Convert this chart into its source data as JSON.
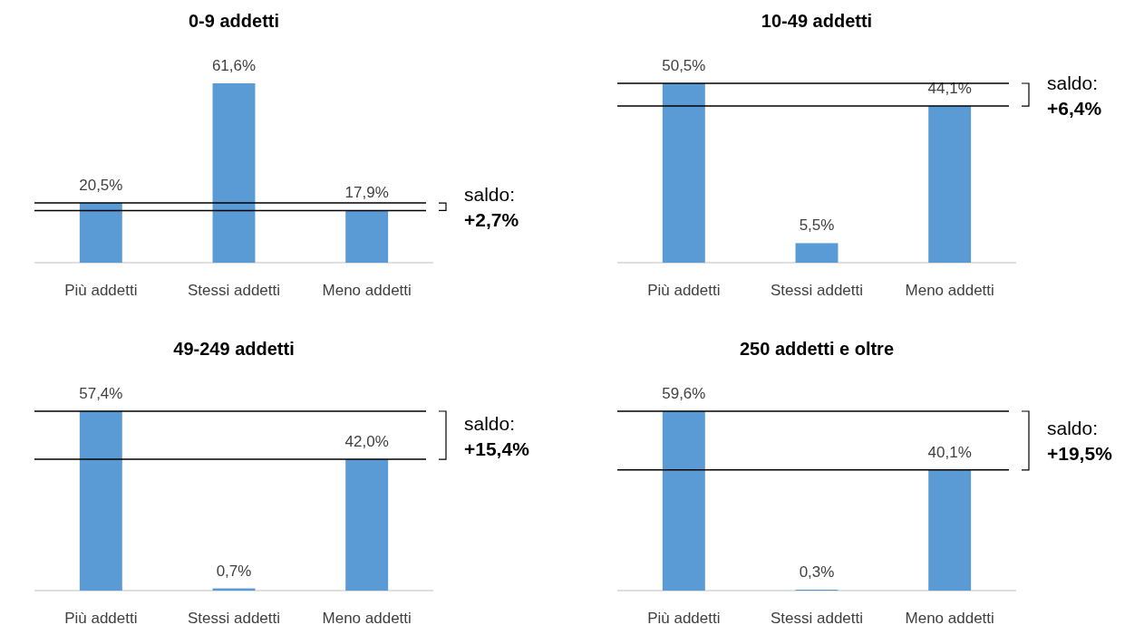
{
  "chart_data": [
    {
      "type": "bar",
      "title": "0-9 addetti",
      "categories": [
        "Più addetti",
        "Stessi addetti",
        "Meno addetti"
      ],
      "values": [
        20.5,
        61.6,
        17.9
      ],
      "value_labels": [
        "20,5%",
        "61,6%",
        "17,9%"
      ],
      "color": "#5b9bd5",
      "ref_lines": [
        {
          "axis": "y",
          "value": 20.5,
          "label": null
        },
        {
          "axis": "y",
          "value": 17.9,
          "label": null
        }
      ],
      "annotations": [
        "saldo:\n+2,7%"
      ]
    },
    {
      "type": "bar",
      "title": "10-49 addetti",
      "categories": [
        "Più addetti",
        "Stessi addetti",
        "Meno addetti"
      ],
      "values": [
        50.5,
        5.5,
        44.1
      ],
      "value_labels": [
        "50,5%",
        "5,5%",
        "44,1%"
      ],
      "color": "#5b9bd5",
      "ref_lines": [
        {
          "axis": "y",
          "value": 50.5,
          "label": null
        },
        {
          "axis": "y",
          "value": 44.1,
          "label": null
        }
      ],
      "annotations": [
        "saldo:\n+6,4%"
      ]
    },
    {
      "type": "bar",
      "title": "49-249 addetti",
      "categories": [
        "Più addetti",
        "Stessi addetti",
        "Meno addetti"
      ],
      "values": [
        57.4,
        0.7,
        42.0
      ],
      "value_labels": [
        "57,4%",
        "0,7%",
        "42,0%"
      ],
      "color": "#5b9bd5",
      "ref_lines": [
        {
          "axis": "y",
          "value": 57.4,
          "label": null
        },
        {
          "axis": "y",
          "value": 42.0,
          "label": null
        }
      ],
      "annotations": [
        "saldo:\n+15,4%"
      ]
    },
    {
      "type": "bar",
      "title": "250 addetti e oltre",
      "categories": [
        "Più addetti",
        "Stessi addetti",
        "Meno addetti"
      ],
      "values": [
        59.6,
        0.3,
        40.1
      ],
      "value_labels": [
        "59,6%",
        "0,3%",
        "40,1%"
      ],
      "color": "#5b9bd5",
      "ref_lines": [
        {
          "axis": "y",
          "value": 59.6,
          "label": null
        },
        {
          "axis": "y",
          "value": 40.1,
          "label": null
        }
      ],
      "annotations": [
        "saldo:\n+19,5%"
      ]
    }
  ]
}
